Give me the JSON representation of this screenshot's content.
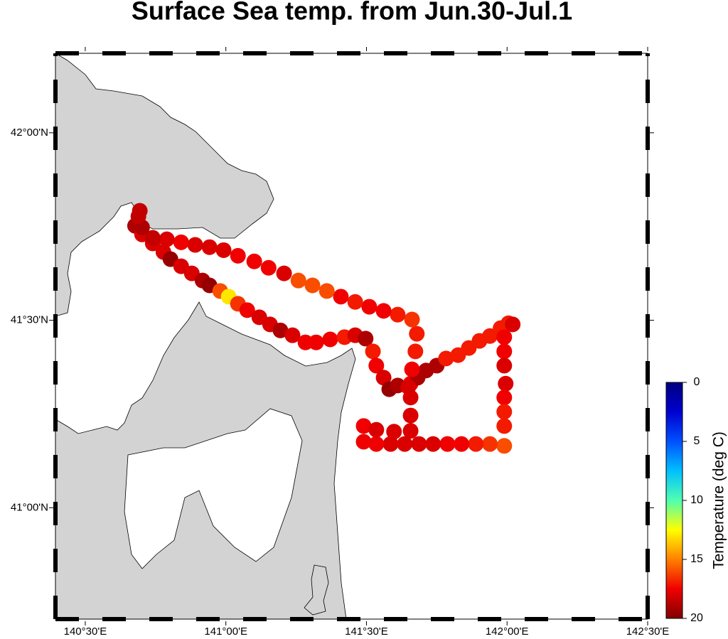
{
  "chart_data": {
    "type": "scatter",
    "title": "Surface Sea temp. from Jun.30-Jul.1",
    "xlim": [
      140.394,
      142.5
    ],
    "ylim": [
      40.703,
      42.212
    ],
    "xticks": [
      {
        "value": 140.5,
        "label": "140°30'E"
      },
      {
        "value": 141,
        "label": "141°00'E"
      },
      {
        "value": 141.5,
        "label": "141°30'E"
      },
      {
        "value": 142,
        "label": "142°00'E"
      },
      {
        "value": 142.5,
        "label": "142°30'E"
      }
    ],
    "yticks": [
      {
        "value": 41,
        "label": "41°00'N"
      },
      {
        "value": 41.5,
        "label": "41°30'N"
      },
      {
        "value": 42,
        "label": "42°00'N"
      }
    ],
    "colorbar_label": "Temperature (deg C)",
    "clim": [
      0,
      20
    ],
    "cticks": [
      0,
      5,
      10,
      15,
      20
    ],
    "colormap": [
      "#000080",
      "#0000d0",
      "#0050ff",
      "#00c0ff",
      "#50ffb0",
      "#ffff00",
      "#ff8000",
      "#f00000",
      "#800000"
    ],
    "x": [
      140.694,
      140.677,
      140.702,
      140.74,
      140.778,
      140.803,
      140.841,
      140.879,
      140.917,
      140.942,
      140.98,
      141.01,
      141.043,
      141.076,
      141.119,
      141.157,
      141.194,
      141.237,
      141.283,
      141.321,
      141.371,
      141.422,
      141.46,
      141.497,
      141.523,
      141.535,
      141.561,
      141.581,
      141.611,
      141.657,
      141.682,
      141.712,
      141.75,
      141.783,
      141.826,
      141.864,
      141.902,
      141.939,
      141.977,
      142.005,
      142.02,
      141.99,
      141.99,
      141.99,
      141.995,
      141.99,
      141.99,
      141.99,
      141.99,
      141.939,
      141.889,
      141.838,
      141.788,
      141.737,
      141.687,
      141.636,
      141.586,
      141.535,
      141.49,
      141.49,
      141.535,
      141.598,
      141.657,
      141.657,
      141.657,
      141.649,
      141.662,
      141.674,
      141.679,
      141.662,
      141.611,
      141.561,
      141.51,
      141.46,
      141.409,
      141.359,
      141.308,
      141.258,
      141.207,
      141.152,
      141.101,
      141.043,
      140.992,
      140.942,
      140.891,
      140.841,
      140.79,
      140.74,
      140.702,
      140.689
    ],
    "y": [
      41.792,
      41.752,
      41.729,
      41.705,
      41.682,
      41.663,
      41.644,
      41.625,
      41.606,
      41.593,
      41.578,
      41.563,
      41.544,
      41.527,
      41.508,
      41.489,
      41.473,
      41.46,
      41.441,
      41.441,
      41.449,
      41.455,
      41.46,
      41.451,
      41.417,
      41.379,
      41.347,
      41.316,
      41.326,
      41.331,
      41.347,
      41.366,
      41.379,
      41.398,
      41.407,
      41.426,
      41.445,
      41.458,
      41.479,
      41.492,
      41.489,
      41.455,
      41.417,
      41.379,
      41.331,
      41.294,
      41.256,
      41.218,
      41.165,
      41.17,
      41.17,
      41.17,
      41.17,
      41.17,
      41.17,
      41.17,
      41.17,
      41.17,
      41.176,
      41.218,
      41.208,
      41.203,
      41.205,
      41.246,
      41.294,
      41.322,
      41.369,
      41.417,
      41.464,
      41.502,
      41.515,
      41.525,
      41.536,
      41.549,
      41.563,
      41.578,
      41.593,
      41.606,
      41.625,
      41.64,
      41.657,
      41.672,
      41.687,
      41.695,
      41.701,
      41.708,
      41.716,
      41.72,
      41.748,
      41.777
    ],
    "z": [
      18.5,
      19,
      18,
      18,
      18,
      19.5,
      18,
      18,
      19,
      19.5,
      16,
      13,
      16.5,
      17.5,
      18,
      18,
      19,
      18,
      17.5,
      17.5,
      17.5,
      17,
      18,
      19,
      17,
      17.5,
      18,
      19.5,
      19,
      17.5,
      19,
      19,
      19,
      17,
      17,
      17,
      17,
      17,
      17,
      17,
      18,
      17.5,
      17.5,
      18,
      18,
      17.5,
      17,
      17,
      16,
      16.5,
      17,
      17.5,
      17.5,
      18,
      18,
      18,
      18,
      17.5,
      17.5,
      17.5,
      18,
      18,
      18,
      18,
      18,
      18,
      17.5,
      17,
      17,
      16.5,
      17,
      17.5,
      17.5,
      17,
      17.5,
      16,
      16,
      16,
      18,
      17.5,
      17.5,
      17.5,
      18,
      18,
      18,
      17.5,
      18,
      18.5,
      19,
      18.5
    ]
  }
}
